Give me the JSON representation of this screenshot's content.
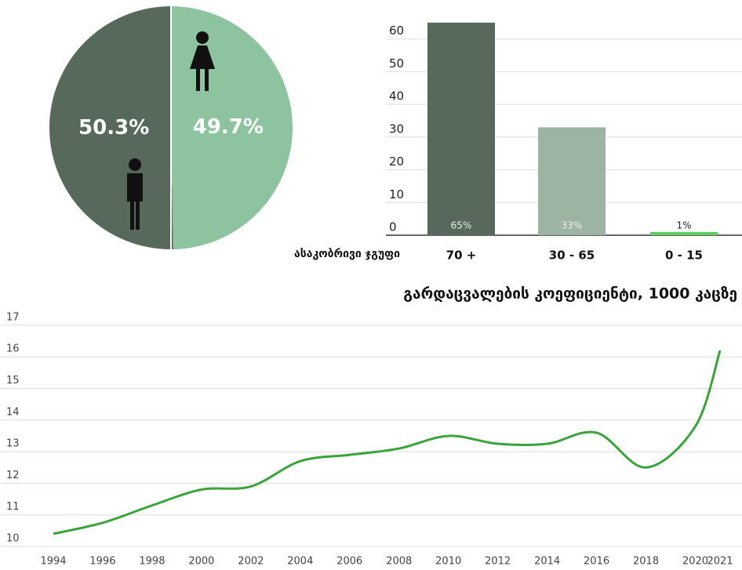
{
  "chart_data": [
    {
      "type": "pie",
      "values": [
        50.3,
        49.7
      ],
      "value_labels": [
        "50.3%",
        "49.7%"
      ],
      "colors": [
        "#56695a",
        "#8dc49f"
      ]
    },
    {
      "type": "bar",
      "categories": [
        "70 +",
        "30 - 65",
        "0 - 15"
      ],
      "values": [
        65,
        33,
        1
      ],
      "value_labels": [
        "65%",
        "33%",
        "1%"
      ],
      "x_label": "ასაკობრივი ჯგუფი",
      "colors": [
        "#56695a",
        "#9cb4a1",
        "#5dcc5d"
      ],
      "ylim": [
        0,
        70
      ],
      "yticks": [
        0,
        10,
        20,
        30,
        40,
        50,
        60
      ],
      "grid": true
    },
    {
      "type": "line",
      "title": "გარდაცვალების კოეფიციენტი, 1000 კაცზე",
      "x": [
        1994,
        1996,
        1998,
        2000,
        2002,
        2004,
        2006,
        2008,
        2010,
        2012,
        2014,
        2016,
        2018,
        2020,
        2021
      ],
      "values": [
        10.4,
        10.75,
        11.3,
        11.8,
        11.9,
        12.7,
        12.9,
        13.1,
        13.5,
        13.25,
        13.25,
        13.6,
        12.5,
        13.8,
        16.2
      ],
      "color": "#3aa33a",
      "xlim": [
        1994,
        2021
      ],
      "xticks": [
        1994,
        1996,
        1998,
        2000,
        2002,
        2004,
        2006,
        2008,
        2010,
        2012,
        2014,
        2016,
        2018,
        2020,
        2021
      ],
      "ylim": [
        10,
        17
      ],
      "yticks": [
        10,
        11,
        12,
        13,
        14,
        15,
        16,
        17
      ],
      "grid": true
    }
  ]
}
